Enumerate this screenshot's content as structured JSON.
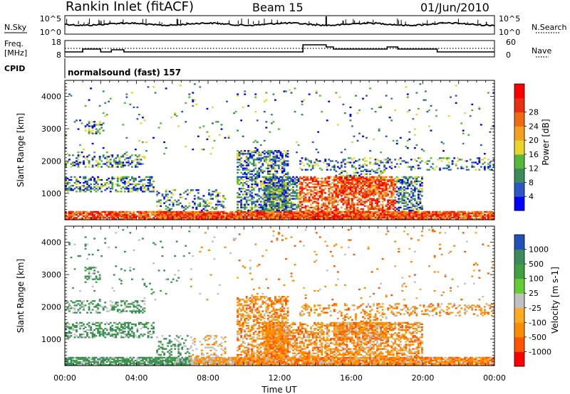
{
  "header": {
    "station": "Rankin Inlet (fitACF)",
    "beam": "Beam 15",
    "date": "01/Jun/2010"
  },
  "top_panels": {
    "nsky": {
      "label": "N.Sky",
      "ticks": [
        "10^5",
        "10^0"
      ]
    },
    "nsearch": {
      "label": "N.Search",
      "ticks": [
        "10^5",
        "10^0"
      ]
    },
    "freq": {
      "label_line1": "Freq.",
      "label_line2": "[MHz]",
      "ticks": [
        "18",
        "8"
      ]
    },
    "nave": {
      "label": "Nave",
      "ticks": [
        "60",
        "0"
      ]
    },
    "cpid": {
      "label": "CPID",
      "value": "normalsound (fast) 157"
    }
  },
  "colors": {
    "power": [
      "#0000ff",
      "#2b56c8",
      "#3a8c5a",
      "#56b83a",
      "#e8d52a",
      "#f5a020",
      "#f06a10",
      "#e83010",
      "#ff0000"
    ],
    "velocity": [
      "#2050b8",
      "#3a8c5a",
      "#40a040",
      "#66cc33",
      "#c0c0c0",
      "#c0c0c0",
      "#ffaa22",
      "#ff8c00",
      "#ff5500",
      "#ff0000"
    ]
  },
  "chart_data": [
    {
      "type": "heatmap",
      "title": "",
      "xlabel": "",
      "ylabel": "Slant Range [km]",
      "xlim_hours": [
        0,
        24
      ],
      "ylim": [
        180,
        4500
      ],
      "x_ticks": [
        "00:00",
        "04:00",
        "08:00",
        "12:00",
        "16:00",
        "20:00",
        "00:00"
      ],
      "y_ticks": [
        1000,
        2000,
        3000,
        4000
      ],
      "colorbar": {
        "label": "Power [dB]",
        "ticks": [
          "4",
          "8",
          "12",
          "16",
          "20",
          "24",
          "28"
        ]
      }
    },
    {
      "type": "heatmap",
      "title": "",
      "xlabel": "Time UT",
      "ylabel": "Slant Range [km]",
      "xlim_hours": [
        0,
        24
      ],
      "ylim": [
        180,
        4500
      ],
      "x_ticks": [
        "00:00",
        "04:00",
        "08:00",
        "12:00",
        "16:00",
        "20:00",
        "00:00"
      ],
      "y_ticks": [
        1000,
        2000,
        3000,
        4000
      ],
      "colorbar": {
        "label": "Velocity [m s-1]",
        "ticks": [
          "1000",
          "500",
          "100",
          "25",
          "-25",
          "-100",
          "-500",
          "-1000"
        ]
      }
    }
  ]
}
